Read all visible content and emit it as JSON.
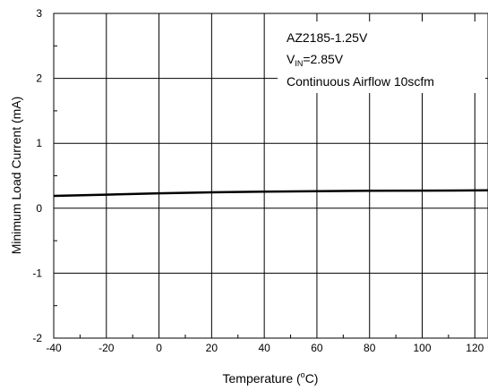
{
  "chart_data": {
    "type": "line",
    "title": "",
    "xlabel_main": "Temperature (",
    "xlabel_sup": "o",
    "xlabel_tail": "C)",
    "ylabel": "Minimum Load Current (mA)",
    "xlim": [
      -40,
      125
    ],
    "ylim": [
      -2,
      3
    ],
    "x_ticks": [
      -40,
      -20,
      0,
      20,
      40,
      60,
      80,
      100,
      120
    ],
    "y_ticks": [
      -2,
      -1,
      0,
      1,
      2,
      3
    ],
    "x_tick_labels": [
      "-40",
      "-20",
      "0",
      "20",
      "40",
      "60",
      "80",
      "100",
      "120"
    ],
    "y_tick_labels": [
      "-2",
      "-1",
      "0",
      "1",
      "2",
      "3"
    ],
    "grid": true,
    "series": [
      {
        "x": [
          -40,
          -20,
          0,
          20,
          40,
          60,
          80,
          100,
          125
        ],
        "values": [
          0.19,
          0.21,
          0.23,
          0.245,
          0.255,
          0.262,
          0.27,
          0.272,
          0.275
        ]
      }
    ],
    "annotation": {
      "line1": "AZ2185-1.25V",
      "line2_main": "V",
      "line2_sub": "IN",
      "line2_tail": "=2.85V",
      "line3": "Continuous Airflow 10scfm"
    }
  }
}
